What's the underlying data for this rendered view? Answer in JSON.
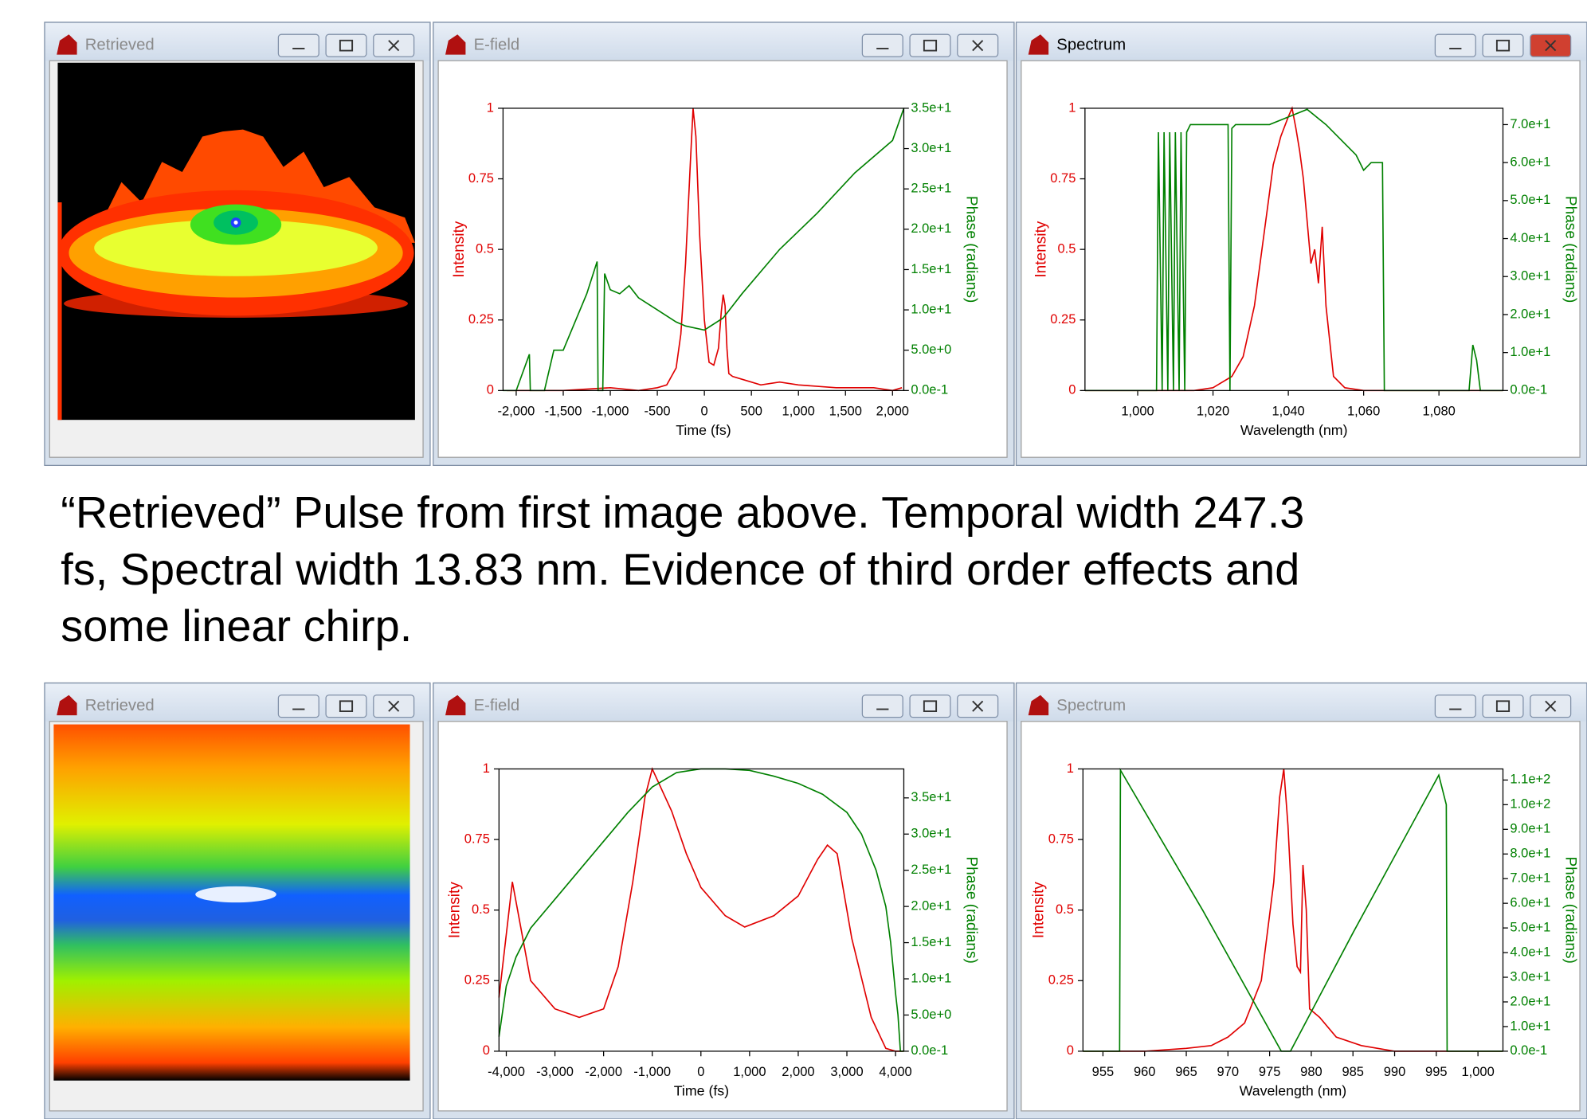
{
  "windows": [
    {
      "title": "Retrieved"
    },
    {
      "title": "E-field"
    },
    {
      "title": "Spectrum"
    },
    {
      "title": "Retrieved"
    },
    {
      "title": "E-field"
    },
    {
      "title": "Spectrum"
    }
  ],
  "caption": [
    "“Retrieved” Pulse from first image above. Temporal width 247.3",
    "fs, Spectral width 13.83 nm. Evidence of third order effects and",
    "some linear chirp."
  ],
  "chart_data": [
    {
      "type": "line",
      "xlabel": "Time (fs)",
      "ylabel": "Intensity",
      "y2label": "Phase (radians)",
      "xlim": [
        -2140,
        2120
      ],
      "xticks": [
        {
          "value": -2000,
          "label": "-2,000"
        },
        {
          "value": -1500,
          "label": "-1,500"
        },
        {
          "value": -1000,
          "label": "-1,000"
        },
        -500,
        0,
        500,
        {
          "value": 1000,
          "label": "1,000"
        },
        {
          "value": 1500,
          "label": "1,500"
        },
        {
          "value": 2000,
          "label": "2,000"
        }
      ],
      "ylim": [
        0,
        1
      ],
      "yticks": [
        0,
        0.25,
        0.5,
        0.75,
        1
      ],
      "y2lim": [
        0,
        35
      ],
      "y2ticks": [
        {
          "value": 0,
          "label": "0.0e-1"
        },
        {
          "value": 5,
          "label": "5.0e+0"
        },
        {
          "value": 10,
          "label": "1.0e+1"
        },
        {
          "value": 15,
          "label": "1.5e+1"
        },
        {
          "value": 20,
          "label": "2.0e+1"
        },
        {
          "value": 25,
          "label": "2.5e+1"
        },
        {
          "value": 30,
          "label": "3.0e+1"
        },
        {
          "value": 35,
          "label": "3.5e+1"
        }
      ],
      "series": [
        {
          "color": "#e00000",
          "x": [
            -2100,
            -1500,
            -1000,
            -700,
            -500,
            -400,
            -300,
            -250,
            -200,
            -150,
            -120,
            -90,
            -50,
            0,
            50,
            100,
            150,
            180,
            200,
            220,
            240,
            260,
            300,
            400,
            600,
            800,
            1000,
            1400,
            1800,
            2000,
            2100
          ],
          "values": [
            0,
            0,
            0.01,
            0,
            0.01,
            0.02,
            0.08,
            0.2,
            0.45,
            0.8,
            1,
            0.9,
            0.55,
            0.25,
            0.1,
            0.09,
            0.15,
            0.28,
            0.34,
            0.3,
            0.15,
            0.06,
            0.05,
            0.04,
            0.02,
            0.03,
            0.02,
            0.01,
            0.01,
            0,
            0.01
          ]
        },
        {
          "color": "#008000",
          "axis": "y2",
          "x": [
            -2140,
            -2000,
            -1860,
            -1850,
            -1700,
            -1600,
            -1500,
            -1250,
            -1140,
            -1130,
            -1080,
            -1060,
            -1000,
            -900,
            -800,
            -700,
            -500,
            -300,
            -200,
            0,
            200,
            400,
            800,
            1200,
            1600,
            2000,
            2120
          ],
          "values": [
            0,
            0,
            4.5,
            0,
            0,
            5,
            5,
            12,
            16,
            0,
            0,
            14.5,
            12.5,
            12,
            13,
            11.5,
            10,
            8.5,
            8,
            7.5,
            9,
            12,
            17.5,
            22,
            27,
            31,
            35
          ]
        }
      ]
    },
    {
      "type": "line",
      "xlabel": "Wavelength (nm)",
      "ylabel": "Intensity",
      "y2label": "Phase (radians)",
      "xlim": [
        986,
        1097
      ],
      "xticks": [
        {
          "value": 1000,
          "label": "1,000"
        },
        {
          "value": 1020,
          "label": "1,020"
        },
        {
          "value": 1040,
          "label": "1,040"
        },
        {
          "value": 1060,
          "label": "1,060"
        },
        {
          "value": 1080,
          "label": "1,080"
        }
      ],
      "ylim": [
        0,
        1
      ],
      "yticks": [
        0,
        0.25,
        0.5,
        0.75,
        1
      ],
      "y2lim": [
        0,
        74.3
      ],
      "y2ticks": [
        {
          "value": 0,
          "label": "0.0e-1"
        },
        {
          "value": 10,
          "label": "1.0e+1"
        },
        {
          "value": 20,
          "label": "2.0e+1"
        },
        {
          "value": 30,
          "label": "3.0e+1"
        },
        {
          "value": 40,
          "label": "4.0e+1"
        },
        {
          "value": 50,
          "label": "5.0e+1"
        },
        {
          "value": 60,
          "label": "6.0e+1"
        },
        {
          "value": 70,
          "label": "7.0e+1"
        }
      ],
      "series": [
        {
          "color": "#e00000",
          "x": [
            986,
            1015,
            1020,
            1025,
            1028,
            1031,
            1034,
            1036,
            1038,
            1040,
            1041,
            1042,
            1043,
            1044,
            1045,
            1046,
            1047,
            1048,
            1049,
            1050,
            1052,
            1055,
            1060,
            1097
          ],
          "values": [
            0,
            0,
            0.01,
            0.05,
            0.12,
            0.3,
            0.6,
            0.8,
            0.9,
            0.97,
            1,
            0.93,
            0.85,
            0.75,
            0.6,
            0.45,
            0.5,
            0.38,
            0.58,
            0.3,
            0.05,
            0.01,
            0,
            0
          ]
        },
        {
          "color": "#008000",
          "axis": "y2",
          "x": [
            986,
            1005,
            1005.5,
            1006.5,
            1007,
            1008,
            1008.5,
            1009.5,
            1010,
            1011,
            1011.5,
            1012.5,
            1013,
            1014,
            1016,
            1024,
            1024.5,
            1025,
            1026,
            1030,
            1035,
            1040,
            1045,
            1050,
            1055,
            1058,
            1060,
            1062,
            1065,
            1065.5,
            1088,
            1089,
            1090,
            1091,
            1097
          ],
          "values": [
            0,
            0,
            68,
            0,
            68,
            0,
            68,
            0,
            68,
            0,
            68,
            0,
            68,
            70,
            70,
            70,
            0,
            69,
            70,
            70,
            70,
            72,
            74,
            70,
            65,
            62,
            58,
            60,
            60,
            0,
            0,
            12,
            8,
            0,
            0
          ]
        }
      ]
    },
    {
      "type": "line",
      "xlabel": "Time (fs)",
      "ylabel": "Intensity",
      "y2label": "Phase (radians)",
      "xlim": [
        -4150,
        4170
      ],
      "xticks": [
        {
          "value": -4000,
          "label": "-4,000"
        },
        {
          "value": -3000,
          "label": "-3,000"
        },
        {
          "value": -2000,
          "label": "-2,000"
        },
        {
          "value": -1000,
          "label": "-1,000"
        },
        0,
        {
          "value": 1000,
          "label": "1,000"
        },
        {
          "value": 2000,
          "label": "2,000"
        },
        {
          "value": 3000,
          "label": "3,000"
        },
        {
          "value": 4000,
          "label": "4,000"
        }
      ],
      "ylim": [
        0,
        1
      ],
      "yticks": [
        0,
        0.25,
        0.5,
        0.75,
        1
      ],
      "y2lim": [
        0,
        39
      ],
      "y2ticks": [
        {
          "value": 0,
          "label": "0.0e-1"
        },
        {
          "value": 5,
          "label": "5.0e+0"
        },
        {
          "value": 10,
          "label": "1.0e+1"
        },
        {
          "value": 15,
          "label": "1.5e+1"
        },
        {
          "value": 20,
          "label": "2.0e+1"
        },
        {
          "value": 25,
          "label": "2.5e+1"
        },
        {
          "value": 30,
          "label": "3.0e+1"
        },
        {
          "value": 35,
          "label": "3.5e+1"
        }
      ],
      "series": [
        {
          "color": "#e00000",
          "x": [
            -4150,
            -3875,
            -3500,
            -3000,
            -2500,
            -2000,
            -1700,
            -1400,
            -1150,
            -1000,
            -600,
            -300,
            0,
            500,
            900,
            1500,
            2000,
            2400,
            2600,
            2800,
            3100,
            3500,
            3800,
            4000,
            4170
          ],
          "values": [
            0.19,
            0.6,
            0.25,
            0.15,
            0.12,
            0.15,
            0.3,
            0.6,
            0.9,
            1,
            0.85,
            0.7,
            0.58,
            0.48,
            0.44,
            0.48,
            0.55,
            0.68,
            0.73,
            0.7,
            0.4,
            0.12,
            0.01,
            0,
            0
          ]
        },
        {
          "color": "#008000",
          "axis": "y2",
          "x": [
            -4150,
            -4000,
            -3800,
            -3500,
            -3000,
            -2500,
            -2000,
            -1500,
            -1000,
            -500,
            0,
            500,
            1000,
            1500,
            2000,
            2500,
            3000,
            3300,
            3600,
            3800,
            3900,
            4000,
            4050,
            4100,
            4170
          ],
          "values": [
            2,
            9,
            13,
            17,
            21,
            25,
            29,
            33,
            36.5,
            38.5,
            39,
            39,
            38.8,
            38,
            37,
            35.5,
            33,
            30,
            25,
            20,
            15,
            8,
            5,
            0,
            0
          ]
        }
      ]
    },
    {
      "type": "line",
      "xlabel": "Wavelength (nm)",
      "ylabel": "Intensity",
      "y2label": "Phase (radians)",
      "xlim": [
        952.6,
        1003
      ],
      "xticks": [
        955,
        960,
        965,
        970,
        975,
        980,
        985,
        990,
        995,
        {
          "value": 1000,
          "label": "1,000"
        }
      ],
      "ylim": [
        0,
        1
      ],
      "yticks": [
        0,
        0.25,
        0.5,
        0.75,
        1
      ],
      "y2lim": [
        0,
        114.5
      ],
      "y2ticks": [
        {
          "value": 0,
          "label": "0.0e-1"
        },
        {
          "value": 10,
          "label": "1.0e+1"
        },
        {
          "value": 20,
          "label": "2.0e+1"
        },
        {
          "value": 30,
          "label": "3.0e+1"
        },
        {
          "value": 40,
          "label": "4.0e+1"
        },
        {
          "value": 50,
          "label": "5.0e+1"
        },
        {
          "value": 60,
          "label": "6.0e+1"
        },
        {
          "value": 70,
          "label": "7.0e+1"
        },
        {
          "value": 80,
          "label": "8.0e+1"
        },
        {
          "value": 90,
          "label": "9.0e+1"
        },
        {
          "value": 100,
          "label": "1.0e+2"
        },
        {
          "value": 110,
          "label": "1.1e+2"
        }
      ],
      "series": [
        {
          "color": "#e00000",
          "x": [
            952.6,
            960,
            965,
            968,
            970,
            972,
            974,
            975.5,
            976.2,
            976.7,
            977.2,
            977.8,
            978.3,
            978.7,
            979,
            979.4,
            979.8,
            981,
            983,
            986,
            990,
            1003
          ],
          "values": [
            0,
            0,
            0.01,
            0.02,
            0.05,
            0.1,
            0.25,
            0.6,
            0.9,
            1,
            0.8,
            0.45,
            0.3,
            0.28,
            0.66,
            0.5,
            0.15,
            0.12,
            0.05,
            0.02,
            0,
            0
          ]
        },
        {
          "color": "#008000",
          "axis": "y2",
          "x": [
            952.6,
            957,
            957.1,
            967,
            976.4,
            977.5,
            985,
            995.3,
            996.2,
            996.3,
            1003
          ],
          "values": [
            0,
            0,
            114,
            57,
            0,
            0,
            48,
            112,
            100,
            0,
            0
          ]
        }
      ]
    }
  ]
}
